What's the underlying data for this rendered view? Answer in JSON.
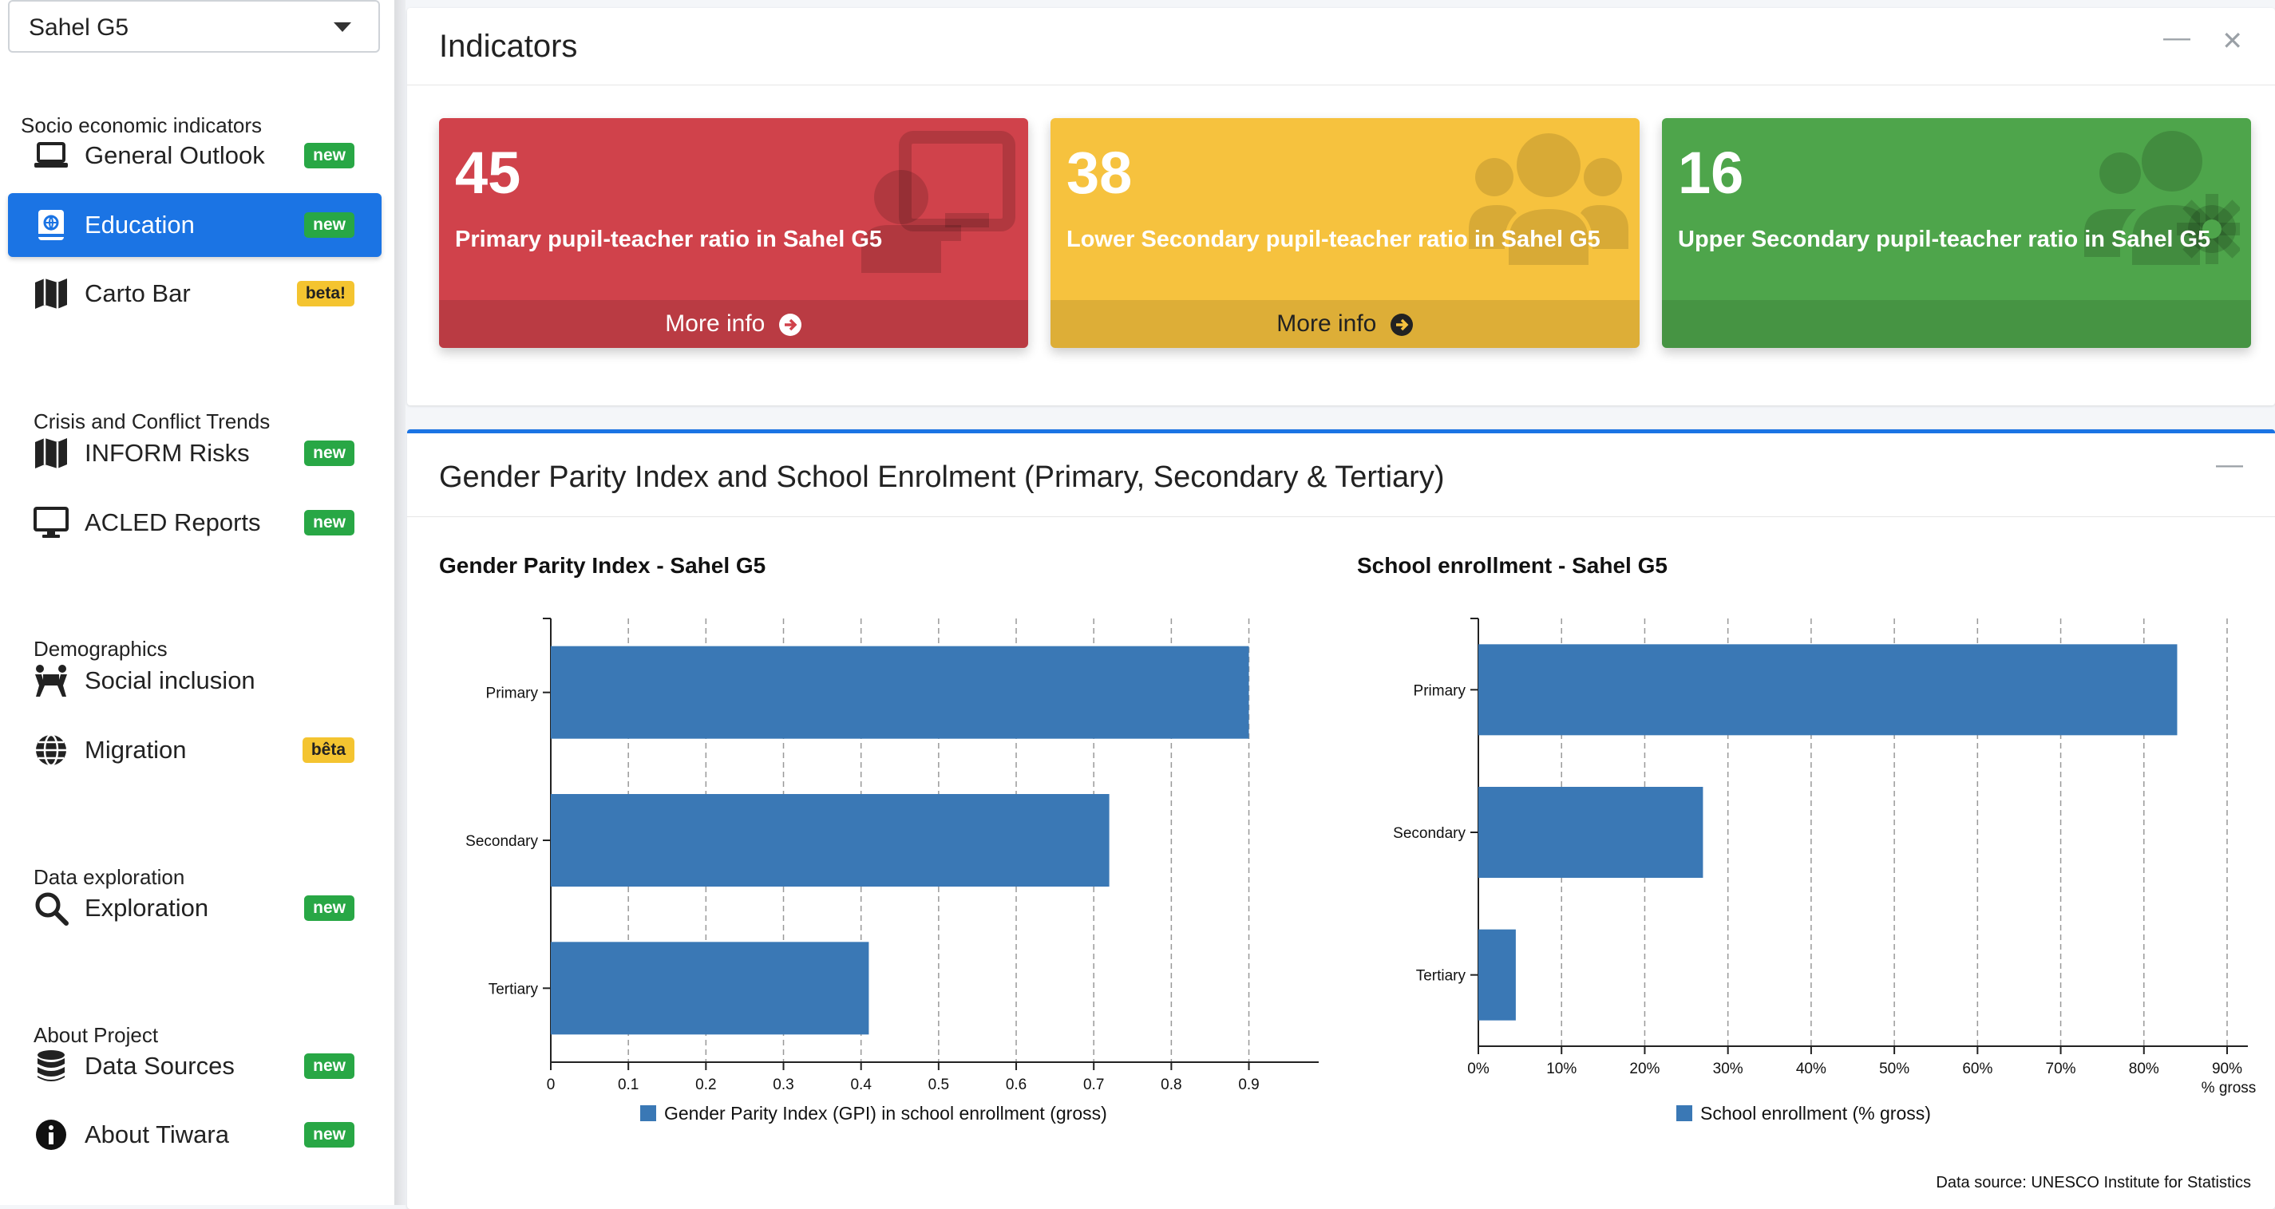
{
  "sidebar": {
    "region_select": "Sahel G5",
    "sections": [
      {
        "title": "Socio economic indicators",
        "items": [
          {
            "label": "General Outlook",
            "badge": "new",
            "icon": "laptop-icon"
          },
          {
            "label": "Education",
            "badge": "new",
            "icon": "book-icon",
            "active": true
          },
          {
            "label": "Carto Bar",
            "badge": "beta!",
            "icon": "map-icon"
          }
        ]
      },
      {
        "title": "Crisis and Conflict Trends",
        "items": [
          {
            "label": "INFORM Risks",
            "badge": "new",
            "icon": "map-icon"
          },
          {
            "label": "ACLED Reports",
            "badge": "new",
            "icon": "desktop-icon"
          }
        ]
      },
      {
        "title": "Demographics",
        "items": [
          {
            "label": "Social inclusion",
            "badge": "",
            "icon": "people-carry-icon"
          },
          {
            "label": "Migration",
            "badge": "bêta",
            "icon": "globe-icon"
          }
        ]
      },
      {
        "title": "Data exploration",
        "items": [
          {
            "label": "Exploration",
            "badge": "new",
            "icon": "search-icon"
          }
        ]
      },
      {
        "title": "About Project",
        "items": [
          {
            "label": "Data Sources",
            "badge": "new",
            "icon": "database-icon"
          },
          {
            "label": "About Tiwara",
            "badge": "new",
            "icon": "info-circle-icon"
          }
        ]
      }
    ]
  },
  "indicators": {
    "title": "Indicators",
    "boxes": [
      {
        "value": "45",
        "text": "Primary pupil-teacher ratio in Sahel G5",
        "footer": "More info",
        "color": "#d0424b",
        "icon": "chalkboard-teacher-icon"
      },
      {
        "value": "38",
        "text": "Lower Secondary pupil-teacher ratio in Sahel G5",
        "footer": "More info",
        "color": "#f6c23e",
        "icon": "users-icon"
      },
      {
        "value": "16",
        "text": "Upper Secondary pupil-teacher ratio in Sahel G5",
        "footer": "",
        "color": "#4ea54b",
        "icon": "users-cog-icon"
      }
    ]
  },
  "gpi_panel": {
    "title": "Gender Parity Index and School Enrolment (Primary, Secondary & Tertiary)",
    "data_source": "Data source: UNESCO Institute for Statistics"
  },
  "chart_data": [
    {
      "type": "bar",
      "orientation": "horizontal",
      "title": "Gender Parity Index - Sahel G5",
      "categories": [
        "Primary",
        "Secondary",
        "Tertiary"
      ],
      "series": [
        {
          "name": "Gender Parity Index (GPI) in school enrollment (gross)",
          "values": [
            0.9,
            0.72,
            0.41
          ]
        }
      ],
      "xlim": [
        0,
        0.99
      ],
      "xticks": [
        "0",
        "0.1",
        "0.2",
        "0.3",
        "0.4",
        "0.5",
        "0.6",
        "0.7",
        "0.8",
        "0.9"
      ],
      "xlabel": "",
      "grid": true,
      "legend": "bottom",
      "color": "#3a78b5"
    },
    {
      "type": "bar",
      "orientation": "horizontal",
      "title": "School enrollment - Sahel G5",
      "categories": [
        "Primary",
        "Secondary",
        "Tertiary"
      ],
      "series": [
        {
          "name": "School enrollment (% gross)",
          "values": [
            84,
            27,
            4.5
          ]
        }
      ],
      "xlim": [
        0,
        90
      ],
      "xticks": [
        "0%",
        "10%",
        "20%",
        "30%",
        "40%",
        "50%",
        "60%",
        "70%",
        "80%",
        "90%"
      ],
      "xlabel": "% gross",
      "grid": true,
      "legend": "bottom",
      "color": "#3a78b5"
    }
  ]
}
